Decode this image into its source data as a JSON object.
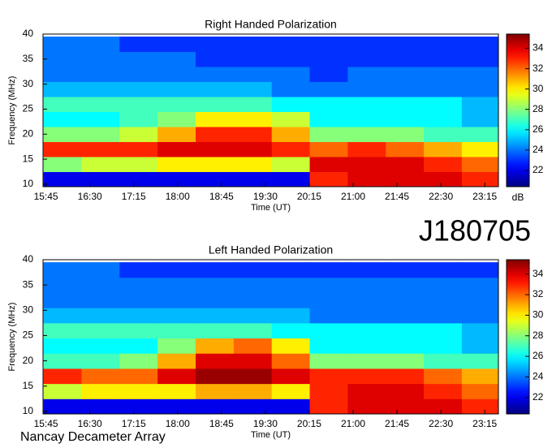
{
  "chart_data": [
    {
      "type": "heatmap",
      "title": "Right Handed Polarization",
      "x_label": "Time (UT)",
      "y_label": "Frequency (MHz)",
      "colormap": "jet",
      "xlim": [
        942,
        1409
      ],
      "xticks": [
        {
          "value": 945,
          "label": "15:45"
        },
        {
          "value": 990,
          "label": "16:30"
        },
        {
          "value": 1035,
          "label": "17:15"
        },
        {
          "value": 1080,
          "label": "18:00"
        },
        {
          "value": 1125,
          "label": "18:45"
        },
        {
          "value": 1170,
          "label": "19:30"
        },
        {
          "value": 1215,
          "label": "20:15"
        },
        {
          "value": 1260,
          "label": "21:00"
        },
        {
          "value": 1305,
          "label": "21:45"
        },
        {
          "value": 1350,
          "label": "22:30"
        },
        {
          "value": 1395,
          "label": "23:15"
        }
      ],
      "ylim": [
        9.5,
        40
      ],
      "yticks": [
        10,
        15,
        20,
        25,
        30,
        35,
        40
      ],
      "x": [
        962,
        1001,
        1040,
        1079,
        1118,
        1157,
        1196,
        1235,
        1274,
        1313,
        1352,
        1391
      ],
      "y": [
        11,
        14,
        17,
        20,
        23,
        26,
        29,
        32,
        35,
        38
      ],
      "z": [
        [
          22,
          22,
          22,
          22,
          22,
          22,
          22,
          33,
          34,
          34,
          34,
          33
        ],
        [
          28,
          29,
          29,
          30,
          30,
          30,
          29,
          34,
          34,
          34,
          33,
          32
        ],
        [
          33,
          33,
          33,
          34,
          34,
          34,
          33,
          32,
          33,
          32,
          31,
          30
        ],
        [
          28,
          28,
          29,
          31,
          33,
          33,
          31,
          28,
          28,
          28,
          27,
          27
        ],
        [
          26,
          26,
          27,
          28,
          30,
          30,
          29,
          26,
          26,
          26,
          26,
          25
        ],
        [
          27,
          27,
          27,
          27,
          27,
          27,
          26,
          26,
          26,
          26,
          26,
          25
        ],
        [
          25,
          25,
          25,
          25,
          25,
          25,
          24,
          24,
          24,
          24,
          24,
          24
        ],
        [
          24,
          24,
          24,
          24,
          24,
          24,
          24,
          23,
          24,
          24,
          24,
          24
        ],
        [
          24,
          24,
          24,
          24,
          23,
          23,
          23,
          23,
          23,
          23,
          23,
          23
        ],
        [
          24,
          24,
          23,
          23,
          23,
          23,
          23,
          23,
          23,
          23,
          23,
          23
        ]
      ],
      "colorbar": {
        "label": "dB",
        "lim": [
          20.4,
          35.4
        ],
        "ticks": [
          22,
          24,
          26,
          28,
          30,
          32,
          34
        ]
      }
    },
    {
      "type": "heatmap",
      "title": "Left Handed Polarization",
      "x_label": "Time (UT)",
      "y_label": "Frequency (MHz)",
      "colormap": "jet",
      "xlim": [
        942,
        1409
      ],
      "xticks": [
        {
          "value": 945,
          "label": "15:45"
        },
        {
          "value": 990,
          "label": "16:30"
        },
        {
          "value": 1035,
          "label": "17:15"
        },
        {
          "value": 1080,
          "label": "18:00"
        },
        {
          "value": 1125,
          "label": "18:45"
        },
        {
          "value": 1170,
          "label": "19:30"
        },
        {
          "value": 1215,
          "label": "20:15"
        },
        {
          "value": 1260,
          "label": "21:00"
        },
        {
          "value": 1305,
          "label": "21:45"
        },
        {
          "value": 1350,
          "label": "22:30"
        },
        {
          "value": 1395,
          "label": "23:15"
        }
      ],
      "ylim": [
        9.5,
        40
      ],
      "yticks": [
        10,
        15,
        20,
        25,
        30,
        35,
        40
      ],
      "x": [
        962,
        1001,
        1040,
        1079,
        1118,
        1157,
        1196,
        1235,
        1274,
        1313,
        1352,
        1391
      ],
      "y": [
        11,
        14,
        17,
        20,
        23,
        26,
        29,
        32,
        35,
        38
      ],
      "z": [
        [
          22,
          22,
          22,
          22,
          22,
          22,
          22,
          33,
          34,
          34,
          34,
          33
        ],
        [
          29,
          30,
          30,
          30,
          31,
          31,
          30,
          33,
          34,
          34,
          33,
          32
        ],
        [
          33,
          32,
          32,
          34,
          35,
          35,
          34,
          33,
          33,
          33,
          32,
          31
        ],
        [
          27,
          27,
          28,
          31,
          34,
          34,
          32,
          28,
          28,
          28,
          27,
          27
        ],
        [
          26,
          26,
          26,
          28,
          31,
          32,
          30,
          26,
          26,
          26,
          26,
          25
        ],
        [
          27,
          27,
          27,
          27,
          27,
          27,
          26,
          26,
          26,
          26,
          26,
          25
        ],
        [
          25,
          25,
          25,
          25,
          25,
          25,
          25,
          24,
          24,
          24,
          24,
          24
        ],
        [
          24,
          24,
          24,
          24,
          24,
          24,
          24,
          24,
          24,
          24,
          24,
          24
        ],
        [
          24,
          24,
          24,
          24,
          24,
          24,
          24,
          24,
          24,
          24,
          24,
          24
        ],
        [
          24,
          24,
          23,
          23,
          23,
          23,
          23,
          23,
          23,
          23,
          23,
          23
        ]
      ],
      "colorbar": {
        "lim": [
          20.4,
          35.4
        ],
        "ticks": [
          22,
          24,
          26,
          28,
          30,
          32,
          34
        ]
      }
    }
  ],
  "label": "J180705",
  "footer": "Nancay Decameter Array"
}
